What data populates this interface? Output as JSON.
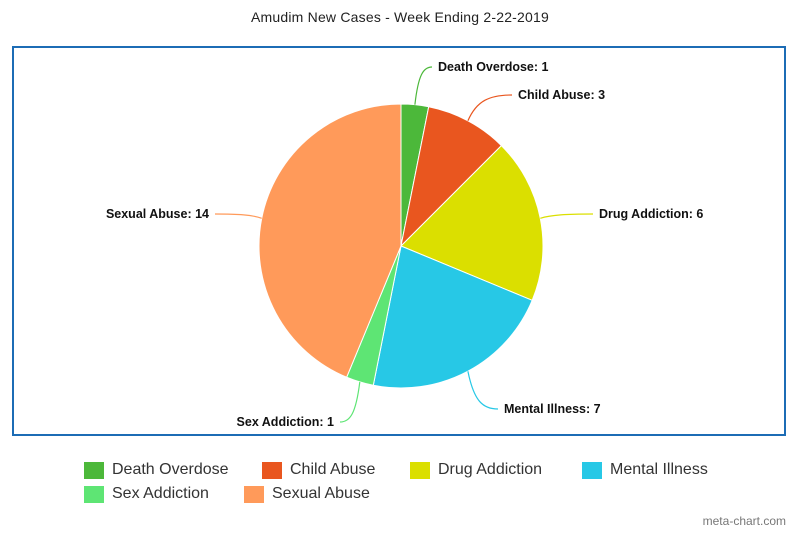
{
  "title": "Amudim New Cases - Week Ending 2-22-2019",
  "watermark": "meta-chart.com",
  "chart_data": {
    "type": "pie",
    "title": "Amudim New Cases - Week Ending 2-22-2019",
    "legend_position": "bottom",
    "slices": [
      {
        "name": "Death Overdose",
        "value": 1,
        "color": "#4cb83a",
        "label": "Death Overdose: 1"
      },
      {
        "name": "Child Abuse",
        "value": 3,
        "color": "#e9561f",
        "label": "Child Abuse: 3"
      },
      {
        "name": "Drug Addiction",
        "value": 6,
        "color": "#dbdf00",
        "label": "Drug Addiction: 6"
      },
      {
        "name": "Mental Illness",
        "value": 7,
        "color": "#27c8e6",
        "label": "Mental Illness: 7"
      },
      {
        "name": "Sex Addiction",
        "value": 1,
        "color": "#5ee574",
        "label": "Sex Addiction: 1"
      },
      {
        "name": "Sexual Abuse",
        "value": 14,
        "color": "#ff9a5a",
        "label": "Sexual Abuse: 14"
      }
    ]
  }
}
